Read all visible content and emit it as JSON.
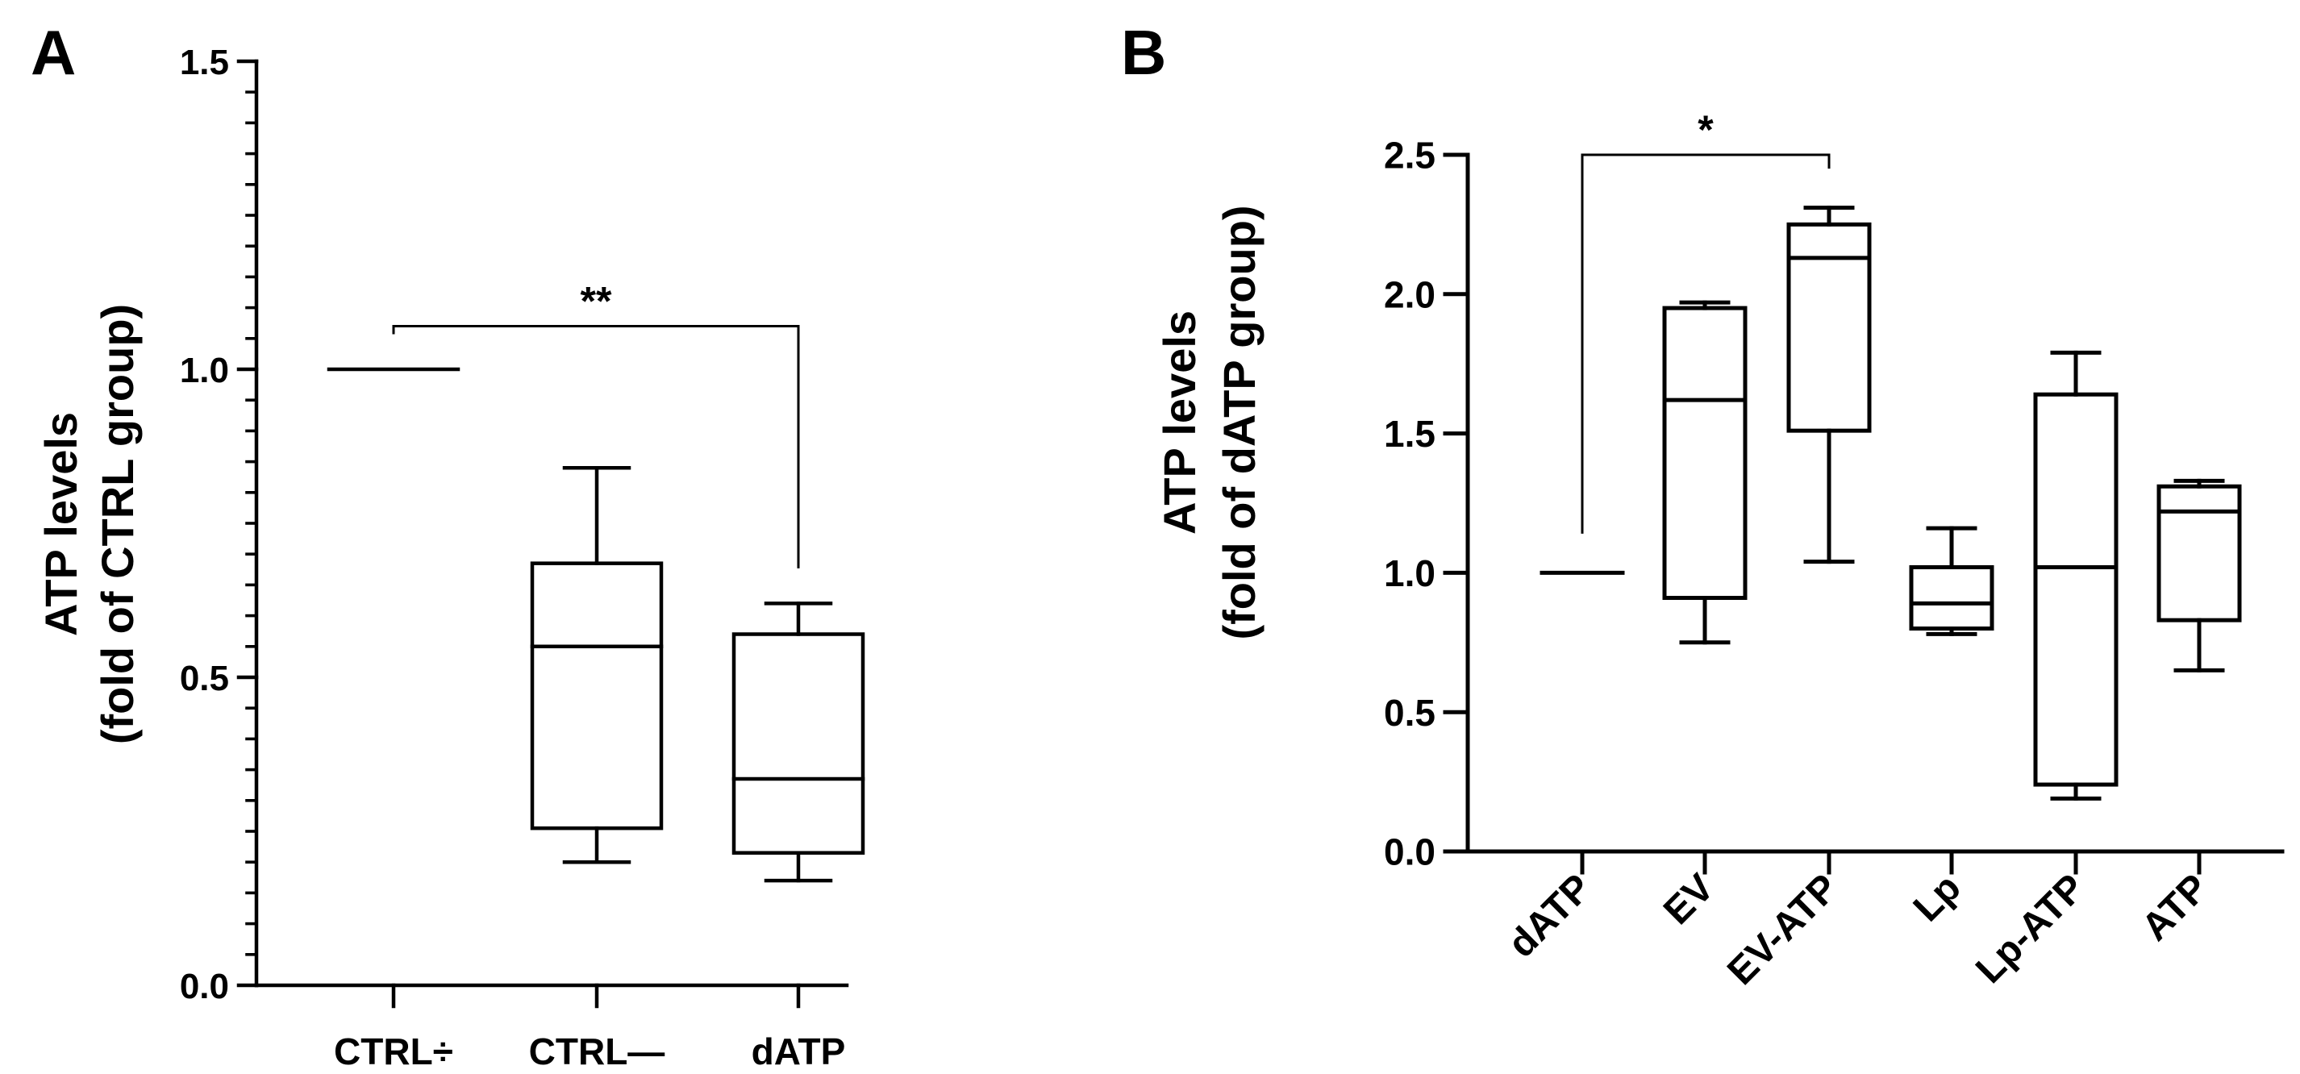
{
  "panels": [
    {
      "letter": "A"
    },
    {
      "letter": "B"
    }
  ],
  "chart_data": [
    {
      "type": "box",
      "panel": "A",
      "ylabel_line1": "ATP levels",
      "ylabel_line2": "(fold of CTRL group)",
      "ylim": [
        0,
        1.5
      ],
      "yticks": [
        "0.0",
        "0.5",
        "1.0",
        "1.5"
      ],
      "ytick_values": [
        0,
        0.5,
        1.0,
        1.5
      ],
      "minor_tick_step": 0.05,
      "categories": [
        "CTRL÷",
        "CTRL—",
        "dATP"
      ],
      "boxes": [
        {
          "min": 1.0,
          "q1": 1.0,
          "median": 1.0,
          "q3": 1.0,
          "max": 1.0
        },
        {
          "min": 0.2,
          "q1": 0.255,
          "median": 0.55,
          "q3": 0.685,
          "max": 0.84
        },
        {
          "min": 0.17,
          "q1": 0.215,
          "median": 0.335,
          "q3": 0.57,
          "max": 0.62
        }
      ],
      "significance": {
        "from": 0,
        "to": 2,
        "label": "**",
        "y": 1.07
      }
    },
    {
      "type": "box",
      "panel": "B",
      "ylabel_line1": "ATP levels",
      "ylabel_line2": "(fold of dATP group)",
      "ylim": [
        0,
        2.5
      ],
      "yticks": [
        "0.0",
        "0.5",
        "1.0",
        "1.5",
        "2.0",
        "2.5"
      ],
      "ytick_values": [
        0,
        0.5,
        1.0,
        1.5,
        2.0,
        2.5
      ],
      "categories": [
        "dATP",
        "EV",
        "EV-ATP",
        "Lp",
        "Lp-ATP",
        "ATP"
      ],
      "boxes": [
        {
          "min": 1.0,
          "q1": 1.0,
          "median": 1.0,
          "q3": 1.0,
          "max": 1.0
        },
        {
          "min": 0.75,
          "q1": 0.91,
          "median": 1.62,
          "q3": 1.95,
          "max": 1.97
        },
        {
          "min": 1.04,
          "q1": 1.51,
          "median": 2.13,
          "q3": 2.25,
          "max": 2.31
        },
        {
          "min": 0.78,
          "q1": 0.8,
          "median": 0.89,
          "q3": 1.02,
          "max": 1.16
        },
        {
          "min": 0.19,
          "q1": 0.24,
          "median": 1.02,
          "q3": 1.64,
          "max": 1.79
        },
        {
          "min": 0.65,
          "q1": 0.83,
          "median": 1.22,
          "q3": 1.31,
          "max": 1.33
        }
      ],
      "significance": {
        "from": 0,
        "to": 2,
        "label": "*",
        "y": 2.5
      }
    }
  ]
}
